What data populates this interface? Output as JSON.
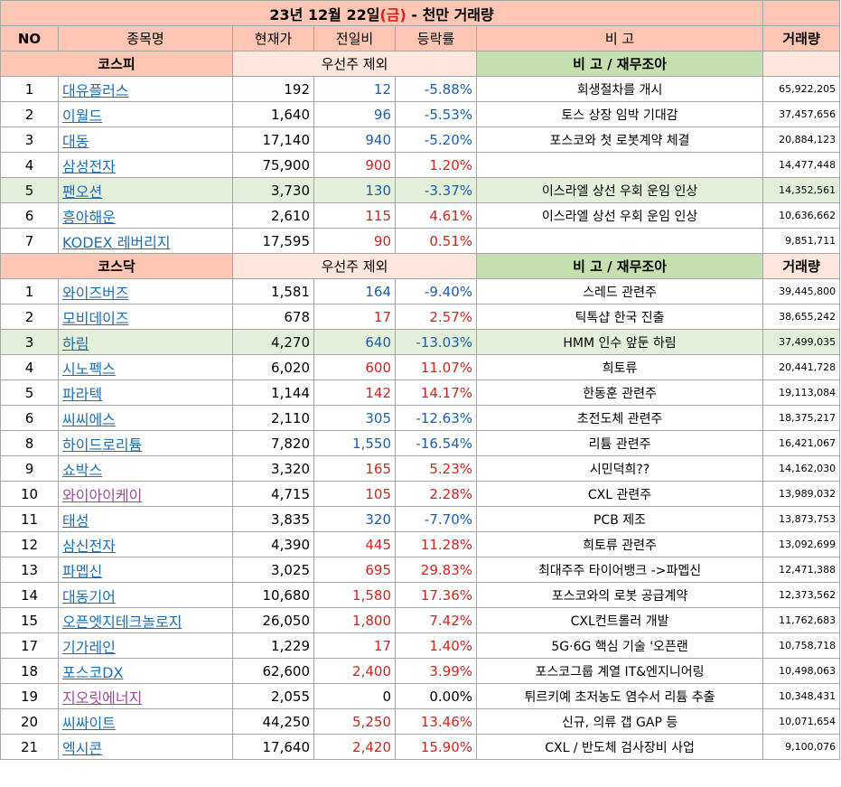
{
  "title": {
    "part1": "23년 12월 22일",
    "part2": "(금)",
    "part3": " - 천만 거래량"
  },
  "headers": {
    "no": "NO",
    "name": "종목명",
    "price": "현재가",
    "change": "전일비",
    "rate": "등락률",
    "memo": "비 고",
    "volume": "거래량"
  },
  "kospi": {
    "label": "코스피",
    "pref_note": "우선주 제외",
    "memo_header": "비 고 / 재무조아",
    "rows": [
      {
        "no": "1",
        "name": "대유플러스",
        "price": "192",
        "change": "12",
        "rate": "-5.88%",
        "dir": "dn",
        "memo": "회생절차를 개시",
        "volume": "65,922,205",
        "hl": false,
        "visited": false
      },
      {
        "no": "2",
        "name": "이월드",
        "price": "1,640",
        "change": "96",
        "rate": "-5.53%",
        "dir": "dn",
        "memo": "토스 상장 임박 기대감",
        "volume": "37,457,656",
        "hl": false,
        "visited": false
      },
      {
        "no": "3",
        "name": "대동",
        "price": "17,140",
        "change": "940",
        "rate": "-5.20%",
        "dir": "dn",
        "memo": "포스코와 첫 로봇계약 체결",
        "volume": "20,884,123",
        "hl": false,
        "visited": false
      },
      {
        "no": "4",
        "name": "삼성전자",
        "price": "75,900",
        "change": "900",
        "rate": "1.20%",
        "dir": "up",
        "memo": "",
        "volume": "14,477,448",
        "hl": false,
        "visited": false
      },
      {
        "no": "5",
        "name": "팬오션",
        "price": "3,730",
        "change": "130",
        "rate": "-3.37%",
        "dir": "dn",
        "memo": "이스라엘 상선 우회 운임 인상",
        "volume": "14,352,561",
        "hl": true,
        "visited": false
      },
      {
        "no": "6",
        "name": "흥아해운",
        "price": "2,610",
        "change": "115",
        "rate": "4.61%",
        "dir": "up",
        "memo": "이스라엘 상선 우회 운임 인상",
        "volume": "10,636,662",
        "hl": false,
        "visited": false
      },
      {
        "no": "7",
        "name": "KODEX 레버리지",
        "price": "17,595",
        "change": "90",
        "rate": "0.51%",
        "dir": "up",
        "memo": "",
        "volume": "9,851,711",
        "hl": false,
        "visited": false
      }
    ]
  },
  "kosdaq": {
    "label": "코스닥",
    "pref_note": "우선주 제외",
    "memo_header": "비 고 / 재무조아",
    "volume_header": "거래량",
    "rows": [
      {
        "no": "1",
        "name": "와이즈버즈",
        "price": "1,581",
        "change": "164",
        "rate": "-9.40%",
        "dir": "dn",
        "memo": "스레드 관련주",
        "volume": "39,445,800",
        "hl": false,
        "visited": false
      },
      {
        "no": "2",
        "name": "모비데이즈",
        "price": "678",
        "change": "17",
        "rate": "2.57%",
        "dir": "up",
        "memo": "틱톡샵 한국 진출",
        "volume": "38,655,242",
        "hl": false,
        "visited": false
      },
      {
        "no": "3",
        "name": "하림",
        "price": "4,270",
        "change": "640",
        "rate": "-13.03%",
        "dir": "dn",
        "memo": "HMM 인수  앞둔  하림",
        "volume": "37,499,035",
        "hl": true,
        "visited": false
      },
      {
        "no": "4",
        "name": "시노펙스",
        "price": "6,020",
        "change": "600",
        "rate": "11.07%",
        "dir": "up",
        "memo": "희토류",
        "volume": "20,441,728",
        "hl": false,
        "visited": false
      },
      {
        "no": "5",
        "name": "파라텍",
        "price": "1,144",
        "change": "142",
        "rate": "14.17%",
        "dir": "up",
        "memo": "한동훈 관련주",
        "volume": "19,113,084",
        "hl": false,
        "visited": false
      },
      {
        "no": "6",
        "name": "씨씨에스",
        "price": "2,110",
        "change": "305",
        "rate": "-12.63%",
        "dir": "dn",
        "memo": "초전도체 관련주",
        "volume": "18,375,217",
        "hl": false,
        "visited": false
      },
      {
        "no": "8",
        "name": "하이드로리튬",
        "price": "7,820",
        "change": "1,550",
        "rate": "-16.54%",
        "dir": "dn",
        "memo": "리튬 관련주",
        "volume": "16,421,067",
        "hl": false,
        "visited": false
      },
      {
        "no": "9",
        "name": "쇼박스",
        "price": "3,320",
        "change": "165",
        "rate": "5.23%",
        "dir": "up",
        "memo": "시민덕희??",
        "volume": "14,162,030",
        "hl": false,
        "visited": false
      },
      {
        "no": "10",
        "name": "와이아이케이",
        "price": "4,715",
        "change": "105",
        "rate": "2.28%",
        "dir": "up",
        "memo": "CXL 관련주",
        "volume": "13,989,032",
        "hl": false,
        "visited": true
      },
      {
        "no": "11",
        "name": "태성",
        "price": "3,835",
        "change": "320",
        "rate": "-7.70%",
        "dir": "dn",
        "memo": "PCB 제조",
        "volume": "13,873,753",
        "hl": false,
        "visited": false
      },
      {
        "no": "12",
        "name": "삼신전자",
        "price": "4,390",
        "change": "445",
        "rate": "11.28%",
        "dir": "up",
        "memo": "희토류 관련주",
        "volume": "13,092,699",
        "hl": false,
        "visited": false
      },
      {
        "no": "13",
        "name": "파멥신",
        "price": "3,025",
        "change": "695",
        "rate": "29.83%",
        "dir": "up",
        "memo": "최대주주 타이어뱅크 ->파멥신",
        "volume": "12,471,388",
        "hl": false,
        "visited": false
      },
      {
        "no": "14",
        "name": "대동기어",
        "price": "10,680",
        "change": "1,580",
        "rate": "17.36%",
        "dir": "up",
        "memo": "포스코와의 로봇 공급계약",
        "volume": "12,373,562",
        "hl": false,
        "visited": false
      },
      {
        "no": "15",
        "name": "오픈엣지테크놀로지",
        "price": "26,050",
        "change": "1,800",
        "rate": "7.42%",
        "dir": "up",
        "memo": "CXL컨트롤러 개발",
        "volume": "11,762,683",
        "hl": false,
        "visited": false
      },
      {
        "no": "17",
        "name": "기가레인",
        "price": "1,229",
        "change": "17",
        "rate": "1.40%",
        "dir": "up",
        "memo": "5G·6G 핵심 기술 '오픈랜",
        "volume": "10,758,718",
        "hl": false,
        "visited": false
      },
      {
        "no": "18",
        "name": "포스코DX",
        "price": "62,600",
        "change": "2,400",
        "rate": "3.99%",
        "dir": "up",
        "memo": "포스코그룹 계열 IT&엔지니어링",
        "volume": "10,498,063",
        "hl": false,
        "visited": false
      },
      {
        "no": "19",
        "name": "지오릿에너지",
        "price": "2,055",
        "change": "0",
        "rate": "0.00%",
        "dir": "flat",
        "memo": "튀르키예 초저농도 염수서 리튬 추출",
        "volume": "10,348,431",
        "hl": false,
        "visited": true
      },
      {
        "no": "20",
        "name": "씨싸이트",
        "price": "44,250",
        "change": "5,250",
        "rate": "13.46%",
        "dir": "up",
        "memo": "신규, 의류 갭 GAP 등",
        "volume": "10,071,654",
        "hl": false,
        "visited": false
      },
      {
        "no": "21",
        "name": "엑시콘",
        "price": "17,640",
        "change": "2,420",
        "rate": "15.90%",
        "dir": "up",
        "memo": "CXL / 반도체 검사장비 사업",
        "volume": "9,100,076",
        "hl": false,
        "visited": false
      }
    ]
  }
}
